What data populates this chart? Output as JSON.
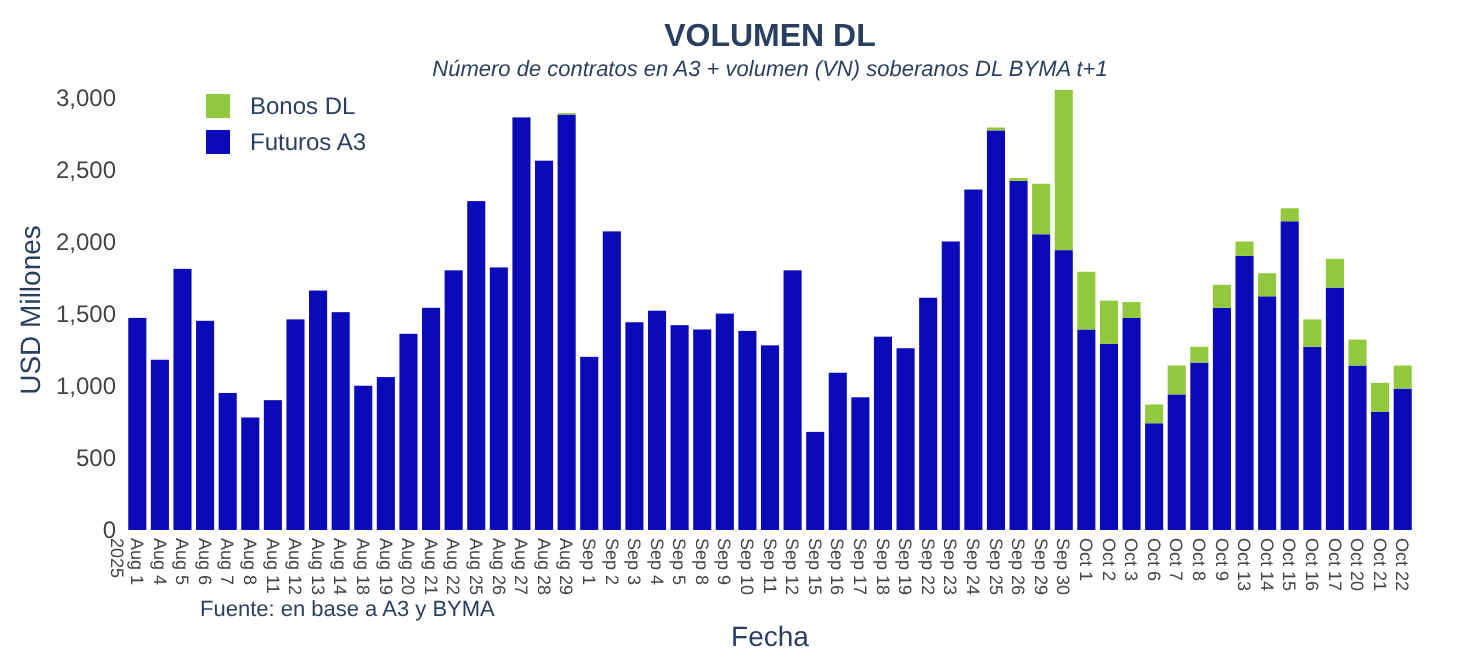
{
  "chart_data": {
    "type": "bar",
    "title": "VOLUMEN DL",
    "subtitle": "Número de contratos en A3 + volumen (VN) soberanos DL BYMA t+1",
    "xlabel": "Fecha",
    "ylabel": "USD Millones",
    "annotations": [
      "Fuente: en base a A3 y BYMA"
    ],
    "categories": [
      "Aug 1\n2025",
      "Aug 4",
      "Aug 5",
      "Aug 6",
      "Aug 7",
      "Aug 8",
      "Aug 11",
      "Aug 12",
      "Aug 13",
      "Aug 14",
      "Aug 18",
      "Aug 19",
      "Aug 20",
      "Aug 21",
      "Aug 22",
      "Aug 25",
      "Aug 26",
      "Aug 27",
      "Aug 28",
      "Aug 29",
      "Sep 1",
      "Sep 2",
      "Sep 3",
      "Sep 4",
      "Sep 5",
      "Sep 8",
      "Sep 9",
      "Sep 10",
      "Sep 11",
      "Sep 12",
      "Sep 15",
      "Sep 16",
      "Sep 17",
      "Sep 18",
      "Sep 19",
      "Sep 22",
      "Sep 23",
      "Sep 24",
      "Sep 25",
      "Sep 26",
      "Sep 29",
      "Sep 30",
      "Oct 1",
      "Oct 2",
      "Oct 3",
      "Oct 6",
      "Oct 7",
      "Oct 8",
      "Oct 9",
      "Oct 13",
      "Oct 14",
      "Oct 15",
      "Oct 16",
      "Oct 17",
      "Oct 20",
      "Oct 21",
      "Oct 22"
    ],
    "stacked": true,
    "legend": "top left",
    "grid": false,
    "series": [
      {
        "name": "Futuros A3",
        "color": "#0a0ab8",
        "values": [
          1470,
          1180,
          1810,
          1450,
          950,
          780,
          900,
          1460,
          1660,
          1510,
          1000,
          1060,
          1360,
          1540,
          1800,
          2280,
          1820,
          2860,
          2560,
          2880,
          1200,
          2070,
          1440,
          1520,
          1420,
          1390,
          1500,
          1380,
          1280,
          1800,
          680,
          1090,
          920,
          1340,
          1260,
          1610,
          2000,
          2360,
          2770,
          2420,
          2050,
          1940,
          1390,
          1290,
          1470,
          740,
          940,
          1160,
          1540,
          1900,
          1620,
          2140,
          1270,
          1680,
          1140,
          820,
          980
        ]
      },
      {
        "name": "Bonos DL",
        "color": "#92c83e",
        "values": [
          0,
          0,
          0,
          0,
          0,
          0,
          0,
          0,
          0,
          0,
          0,
          0,
          0,
          0,
          0,
          0,
          0,
          0,
          0,
          10,
          0,
          0,
          0,
          0,
          0,
          0,
          0,
          0,
          0,
          0,
          0,
          0,
          0,
          0,
          0,
          0,
          0,
          0,
          20,
          20,
          350,
          1110,
          400,
          300,
          110,
          130,
          200,
          110,
          160,
          100,
          160,
          90,
          190,
          200,
          180,
          200,
          160
        ]
      }
    ],
    "ylim": [
      0,
      3050
    ],
    "yticks": [
      {
        "value": 0,
        "label": "0"
      },
      {
        "value": 500,
        "label": "500"
      },
      {
        "value": 1000,
        "label": "1,000"
      },
      {
        "value": 1500,
        "label": "1,500"
      },
      {
        "value": 2000,
        "label": "2,000"
      },
      {
        "value": 2500,
        "label": "2,500"
      },
      {
        "value": 3000,
        "label": "3,000"
      }
    ]
  }
}
